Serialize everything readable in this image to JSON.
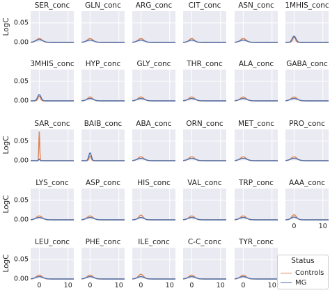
{
  "chart_data": {
    "type": "line",
    "ylabel": "LogC",
    "xticks": [
      "0",
      "10"
    ],
    "yticks": [
      "0.00",
      "0.05"
    ],
    "xlim": [
      -3,
      12
    ],
    "ylim": [
      0,
      0.08
    ],
    "grid": true,
    "legend": {
      "title": "Status",
      "placement": "bottom-right",
      "entries": [
        {
          "name": "Controls",
          "color": "#dd8452"
        },
        {
          "name": "MG",
          "color": "#4c72b0"
        }
      ]
    },
    "panels": [
      {
        "title": "SER_conc",
        "controls_peak": 0.01,
        "mg_peak": 0.007,
        "spread": 1.0
      },
      {
        "title": "GLN_conc",
        "controls_peak": 0.01,
        "mg_peak": 0.006,
        "spread": 1.0
      },
      {
        "title": "ARG_conc",
        "controls_peak": 0.01,
        "mg_peak": 0.006,
        "spread": 1.0
      },
      {
        "title": "CIT_conc",
        "controls_peak": 0.01,
        "mg_peak": 0.006,
        "spread": 0.9
      },
      {
        "title": "ASN_conc",
        "controls_peak": 0.01,
        "mg_peak": 0.006,
        "spread": 1.0
      },
      {
        "title": "1MHIS_conc",
        "controls_peak": 0.013,
        "mg_peak": 0.016,
        "spread": 0.5
      },
      {
        "title": "3MHIS_conc",
        "controls_peak": 0.012,
        "mg_peak": 0.016,
        "spread": 0.45
      },
      {
        "title": "HYP_conc",
        "controls_peak": 0.01,
        "mg_peak": 0.006,
        "spread": 0.9
      },
      {
        "title": "GLY_conc",
        "controls_peak": 0.01,
        "mg_peak": 0.006,
        "spread": 1.0
      },
      {
        "title": "THR_conc",
        "controls_peak": 0.01,
        "mg_peak": 0.006,
        "spread": 1.0
      },
      {
        "title": "ALA_conc",
        "controls_peak": 0.01,
        "mg_peak": 0.006,
        "spread": 1.0
      },
      {
        "title": "GABA_conc",
        "controls_peak": 0.01,
        "mg_peak": 0.006,
        "spread": 1.0
      },
      {
        "title": "SAR_conc",
        "controls_peak": 0.075,
        "mg_peak": 0.004,
        "spread": 0.15
      },
      {
        "title": "BAIB_conc",
        "controls_peak": 0.012,
        "mg_peak": 0.02,
        "spread": 0.35
      },
      {
        "title": "ABA_conc",
        "controls_peak": 0.01,
        "mg_peak": 0.006,
        "spread": 1.0
      },
      {
        "title": "ORN_conc",
        "controls_peak": 0.01,
        "mg_peak": 0.006,
        "spread": 1.0
      },
      {
        "title": "MET_conc",
        "controls_peak": 0.01,
        "mg_peak": 0.006,
        "spread": 1.0
      },
      {
        "title": "PRO_conc",
        "controls_peak": 0.01,
        "mg_peak": 0.006,
        "spread": 1.0
      },
      {
        "title": "LYS_conc",
        "controls_peak": 0.01,
        "mg_peak": 0.006,
        "spread": 1.0
      },
      {
        "title": "ASP_conc",
        "controls_peak": 0.01,
        "mg_peak": 0.006,
        "spread": 1.0
      },
      {
        "title": "HIS_conc",
        "controls_peak": 0.012,
        "mg_peak": 0.006,
        "spread": 0.8
      },
      {
        "title": "VAL_conc",
        "controls_peak": 0.01,
        "mg_peak": 0.006,
        "spread": 1.0
      },
      {
        "title": "TRP_conc",
        "controls_peak": 0.01,
        "mg_peak": 0.006,
        "spread": 1.0
      },
      {
        "title": "AAA_conc",
        "controls_peak": 0.013,
        "mg_peak": 0.007,
        "spread": 0.8
      },
      {
        "title": "LEU_conc",
        "controls_peak": 0.01,
        "mg_peak": 0.006,
        "spread": 1.0
      },
      {
        "title": "PHE_conc",
        "controls_peak": 0.01,
        "mg_peak": 0.006,
        "spread": 1.0
      },
      {
        "title": "ILE_conc",
        "controls_peak": 0.012,
        "mg_peak": 0.006,
        "spread": 0.9
      },
      {
        "title": "C-C_conc",
        "controls_peak": 0.01,
        "mg_peak": 0.006,
        "spread": 1.0
      },
      {
        "title": "TYR_conc",
        "controls_peak": 0.01,
        "mg_peak": 0.006,
        "spread": 1.0
      }
    ]
  }
}
